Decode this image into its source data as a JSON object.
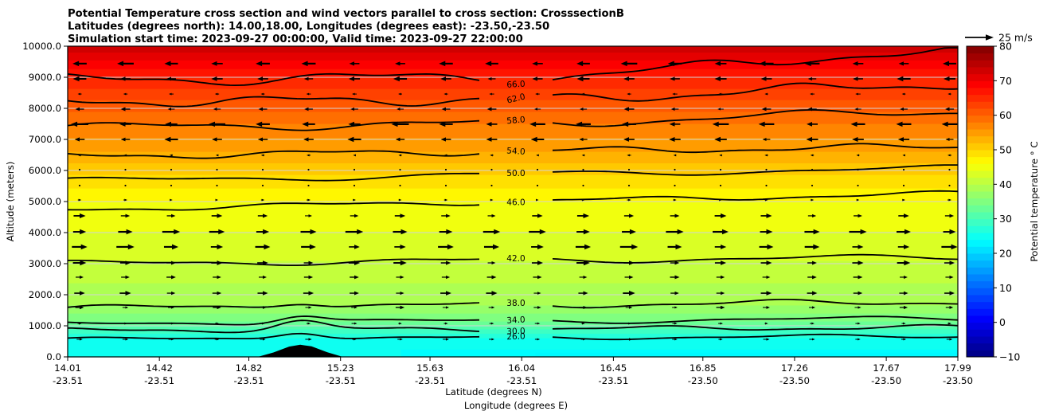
{
  "header": {
    "line1": "Potential Temperature cross section and wind vectors parallel to cross section: CrosssectionB",
    "line2": "Latitudes (degrees north): 14.00,18.00, Longitudes (degrees east): -23.50,-23.50",
    "line3": "Simulation start time: 2023-09-27 00:00:00, Valid time: 2023-09-27 22:00:00"
  },
  "axes": {
    "x": {
      "label_line1": "Latitude (degrees N)",
      "label_line2": "Longitude (degrees E)",
      "ticks": [
        {
          "lat": "14.01",
          "lon": "-23.51"
        },
        {
          "lat": "14.42",
          "lon": "-23.51"
        },
        {
          "lat": "14.82",
          "lon": "-23.51"
        },
        {
          "lat": "15.23",
          "lon": "-23.51"
        },
        {
          "lat": "15.63",
          "lon": "-23.51"
        },
        {
          "lat": "16.04",
          "lon": "-23.51"
        },
        {
          "lat": "16.45",
          "lon": "-23.51"
        },
        {
          "lat": "16.85",
          "lon": "-23.50"
        },
        {
          "lat": "17.26",
          "lon": "-23.50"
        },
        {
          "lat": "17.67",
          "lon": "-23.50"
        },
        {
          "lat": "17.99",
          "lon": "-23.50"
        }
      ],
      "range_deg": [
        14.01,
        17.99
      ]
    },
    "y": {
      "label": "Altitude (meters)",
      "tick_labels": [
        "0.0",
        "1000.0",
        "2000.0",
        "3000.0",
        "4000.0",
        "5000.0",
        "6000.0",
        "7000.0",
        "8000.0",
        "9000.0",
        "10000.0"
      ],
      "range_m": [
        0,
        10000
      ],
      "grid": true,
      "grid_color": "#d4d4d4"
    }
  },
  "colorbar": {
    "label": "Potential temperature ° C",
    "tick_labels": [
      "80",
      "70",
      "60",
      "50",
      "40",
      "30",
      "20",
      "10",
      "0",
      "−10"
    ],
    "tick_values": [
      80,
      70,
      60,
      50,
      40,
      30,
      20,
      10,
      0,
      -10
    ],
    "vmin": -10,
    "vmax": 80,
    "cmap": "jet",
    "cmap_stops": [
      [
        0,
        "#00007f"
      ],
      [
        0.125,
        "#0000ff"
      ],
      [
        0.375,
        "#00ffff"
      ],
      [
        0.625,
        "#ffff00"
      ],
      [
        0.875,
        "#ff0000"
      ],
      [
        1,
        "#7f0000"
      ]
    ]
  },
  "quiver_key": {
    "label": "25 m/s",
    "speed_ms": 25
  },
  "chart_data": {
    "type": "heatmap",
    "subtype": "filled_contour_cross_section_with_quiver",
    "title": "Potential Temperature cross section and wind vectors parallel to cross section: CrosssectionB",
    "x_axis": "Latitude 14.01 to 17.99 degrees N (Longitude -23.51 to -23.50 degrees E)",
    "y_axis": "Altitude 0 to 10000 meters",
    "fill_units": "degrees C potential temperature, jet colormap, bands every 2 C",
    "temp_altitude_levels": [
      {
        "t": 24,
        "alt_m": 0
      },
      {
        "t": 26,
        "alt_m": 615
      },
      {
        "t": 28,
        "alt_m": 760
      },
      {
        "t": 30,
        "alt_m": 900
      },
      {
        "t": 32,
        "alt_m": 1030
      },
      {
        "t": 34,
        "alt_m": 1155
      },
      {
        "t": 36,
        "alt_m": 1410
      },
      {
        "t": 38,
        "alt_m": 1670
      },
      {
        "t": 40,
        "alt_m": 2385
      },
      {
        "t": 42,
        "alt_m": 3105
      },
      {
        "t": 44,
        "alt_m": 4050
      },
      {
        "t": 46,
        "alt_m": 5000
      },
      {
        "t": 48,
        "alt_m": 5435
      },
      {
        "t": 50,
        "alt_m": 5870
      },
      {
        "t": 52,
        "alt_m": 6245
      },
      {
        "t": 54,
        "alt_m": 6615
      },
      {
        "t": 56,
        "alt_m": 7065
      },
      {
        "t": 58,
        "alt_m": 7515
      },
      {
        "t": 60,
        "alt_m": 7900
      },
      {
        "t": 62,
        "alt_m": 8280
      },
      {
        "t": 64,
        "alt_m": 8640
      },
      {
        "t": 66,
        "alt_m": 9000
      },
      {
        "t": 68,
        "alt_m": 9280
      },
      {
        "t": 70,
        "alt_m": 9560
      },
      {
        "t": 72,
        "alt_m": 9810
      },
      {
        "t": 74,
        "alt_m": 10000
      }
    ],
    "contour_lines": [
      {
        "level": 26.0,
        "alt_m": 615,
        "labeled": true,
        "tilt": 4,
        "amp": 2.0,
        "freq": 2.6,
        "phase": 0.5,
        "bump": 9,
        "label_rot": -2
      },
      {
        "level": 30.0,
        "alt_m": 900,
        "labeled": true,
        "tilt": 4,
        "amp": 2.4,
        "freq": 3.1,
        "phase": 1.4,
        "bump": 10,
        "label_rot": -2
      },
      {
        "level": 34.0,
        "alt_m": 1155,
        "labeled": true,
        "tilt": 6,
        "amp": 2.6,
        "freq": 2.2,
        "phase": 2.2,
        "bump": 9,
        "label_rot": -3
      },
      {
        "level": 38.0,
        "alt_m": 1670,
        "labeled": true,
        "tilt": 8,
        "amp": 3.2,
        "freq": 2.8,
        "phase": 0.2,
        "bump": 7,
        "label_rot": 0
      },
      {
        "level": 42.0,
        "alt_m": 3105,
        "labeled": true,
        "tilt": 8,
        "amp": 3.0,
        "freq": 2.4,
        "phase": 1.1,
        "bump": 0,
        "label_rot": 0
      },
      {
        "level": 46.0,
        "alt_m": 5000,
        "labeled": true,
        "tilt": 20,
        "amp": 2.6,
        "freq": 2.9,
        "phase": 2.8,
        "bump": 0,
        "label_rot": 0
      },
      {
        "level": 50.0,
        "alt_m": 5870,
        "labeled": true,
        "tilt": 16,
        "amp": 3.0,
        "freq": 2.2,
        "phase": 0.8,
        "bump": 0,
        "label_rot": 0
      },
      {
        "level": 54.0,
        "alt_m": 6615,
        "labeled": true,
        "tilt": 12,
        "amp": 3.4,
        "freq": 3.3,
        "phase": 1.9,
        "bump": 0,
        "label_rot": 4
      },
      {
        "level": 58.0,
        "alt_m": 7515,
        "labeled": true,
        "tilt": 10,
        "amp": 4.4,
        "freq": 2.7,
        "phase": 0.3,
        "bump": 0,
        "ramp": 10,
        "label_rot": -5
      },
      {
        "level": 62.0,
        "alt_m": 8280,
        "labeled": true,
        "tilt": 6,
        "amp": 5.0,
        "freq": 3.5,
        "phase": 2.4,
        "bump": 0,
        "ramp": 16,
        "label_rot": -14
      },
      {
        "level": 66.0,
        "alt_m": 9000,
        "labeled": true,
        "tilt": 6,
        "amp": 6.0,
        "freq": 2.9,
        "phase": 1.6,
        "bump": 0,
        "ramp": 30,
        "label_rot": -3
      }
    ],
    "wind_rows": [
      {
        "alt_m": 9440,
        "u_ms": -12.0
      },
      {
        "alt_m": 8950,
        "u_ms": -10.0
      },
      {
        "alt_m": 8460,
        "u_ms": -4.0
      },
      {
        "alt_m": 7975,
        "u_ms": -7.5
      },
      {
        "alt_m": 7490,
        "u_ms": -13.0
      },
      {
        "alt_m": 7000,
        "u_ms": -10.0
      },
      {
        "alt_m": 6490,
        "u_ms": -3.0
      },
      {
        "alt_m": 6025,
        "u_ms": -1.5
      },
      {
        "alt_m": 5515,
        "u_ms": 1.5
      },
      {
        "alt_m": 5050,
        "u_ms": 3.0
      },
      {
        "alt_m": 4540,
        "u_ms": 9.0
      },
      {
        "alt_m": 4025,
        "u_ms": 13.0
      },
      {
        "alt_m": 3540,
        "u_ms": 13.0
      },
      {
        "alt_m": 3025,
        "u_ms": 10.0
      },
      {
        "alt_m": 2565,
        "u_ms": 8.0
      },
      {
        "alt_m": 2050,
        "u_ms": 9.0
      },
      {
        "alt_m": 1590,
        "u_ms": 6.5
      },
      {
        "alt_m": 1075,
        "u_ms": 4.0
      },
      {
        "alt_m": 565,
        "u_ms": 5.0
      }
    ],
    "terrain_profile": [
      {
        "lat": 14.86,
        "alt_m": 0
      },
      {
        "lat": 14.93,
        "alt_m": 140
      },
      {
        "lat": 15.0,
        "alt_m": 330
      },
      {
        "lat": 15.05,
        "alt_m": 390
      },
      {
        "lat": 15.1,
        "alt_m": 340
      },
      {
        "lat": 15.17,
        "alt_m": 150
      },
      {
        "lat": 15.24,
        "alt_m": 0
      }
    ],
    "cool_surface_patches": [
      {
        "lat_from": 15.5,
        "lat_to": 17.99,
        "alt_top_m": 230,
        "t": 23.6
      },
      {
        "lat_from": 16.1,
        "lat_to": 17.99,
        "alt_top_m": 130,
        "t": 23.2
      }
    ]
  }
}
